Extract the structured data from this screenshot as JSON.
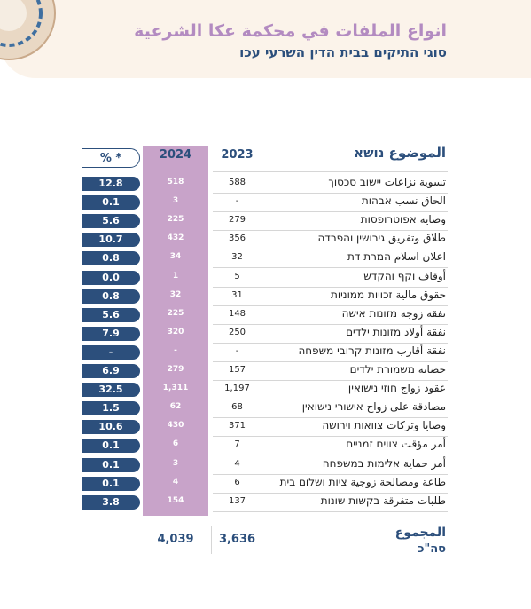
{
  "header": {
    "title_ar": "انواع الملفات في محكمة عكا الشرعية",
    "title_he": "סוגי התיקים בבית הדין השרעי עכו"
  },
  "table": {
    "columns": [
      "الموضوع נושא",
      "2023",
      "2024",
      "% *"
    ],
    "rows": [
      [
        "تسوية نزاعات יישוב סכסוך",
        "588",
        "518",
        "12.8"
      ],
      [
        "الحاق نسب אבהות",
        "-",
        "3",
        "0.1"
      ],
      [
        "وصاية אפוטרופסות",
        "279",
        "225",
        "5.6"
      ],
      [
        "طلاق وتفريق גירושין והפרדה",
        "356",
        "432",
        "10.7"
      ],
      [
        "اعلان اسلام המרת דת",
        "32",
        "34",
        "0.8"
      ],
      [
        "أوقاف וקף והקדש",
        "5",
        "1",
        "0.0"
      ],
      [
        "حقوق مالية זכויות ממוניות",
        "31",
        "32",
        "0.8"
      ],
      [
        "نفقة زوجة מזונות אישה",
        "148",
        "225",
        "5.6"
      ],
      [
        "نفقة أولاد מזונות ילדים",
        "250",
        "320",
        "7.9"
      ],
      [
        "نفقة أقارب מזונות קרובי משפחה",
        "-",
        "-",
        "-"
      ],
      [
        "حضانة משמורת ילדים",
        "157",
        "279",
        "6.9"
      ],
      [
        "عقود زواج חוזי נישואין",
        "1,197",
        "1,311",
        "32.5"
      ],
      [
        "مصادقة على زواج אישורי נישואין",
        "68",
        "62",
        "1.5"
      ],
      [
        "وصايا وتركات צוואות וירושה",
        "371",
        "430",
        "10.6"
      ],
      [
        "أمر مؤقت צווים זמניים",
        "7",
        "6",
        "0.1"
      ],
      [
        "أمر حماية אלימות במשפחה",
        "4",
        "3",
        "0.1"
      ],
      [
        "طاعة ومصالحة زوجية ציות ושלום בית",
        "6",
        "4",
        "0.1"
      ],
      [
        "طلبات متفرقة בקשות שונות",
        "137",
        "154",
        "3.8"
      ]
    ],
    "total": {
      "label_ar": "المجموع",
      "label_he": "סה\"כ",
      "y2023": "3,636",
      "y2024": "4,039"
    }
  }
}
